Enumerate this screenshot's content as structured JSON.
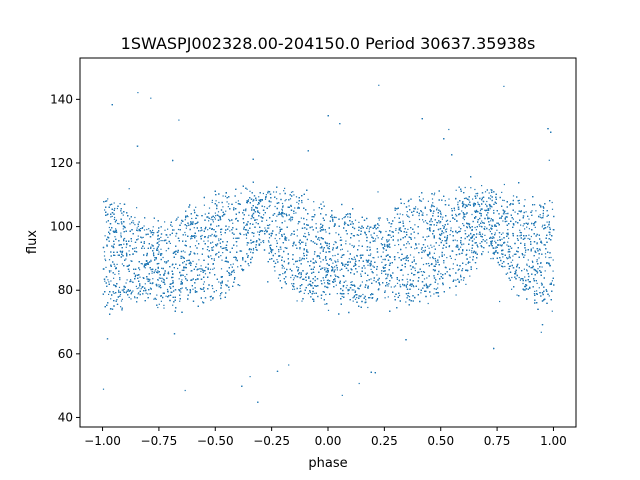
{
  "chart_data": {
    "type": "scatter",
    "title": "1SWASPJ002328.00-204150.0 Period 30637.35938s",
    "xlabel": "phase",
    "ylabel": "flux",
    "xlim": [
      -1.1,
      1.1
    ],
    "ylim": [
      37,
      153
    ],
    "xticks": [
      -1.0,
      -0.75,
      -0.5,
      -0.25,
      0.0,
      0.25,
      0.5,
      0.75,
      1.0
    ],
    "xtick_labels": [
      "−1.00",
      "−0.75",
      "−0.50",
      "−0.25",
      "0.00",
      "0.25",
      "0.50",
      "0.75",
      "1.00"
    ],
    "yticks": [
      40,
      60,
      80,
      100,
      120,
      140
    ],
    "ytick_labels": [
      "40",
      "60",
      "80",
      "100",
      "120",
      "140"
    ],
    "grid": false,
    "marker_color": "#1f77b4",
    "series": [
      {
        "phase_range": [
          -1.0,
          1.0
        ],
        "upper_envelope": {
          "x": [
            -1.0,
            -0.9,
            -0.8,
            -0.7,
            -0.6,
            -0.5,
            -0.4,
            -0.3,
            -0.2,
            -0.1,
            0.0,
            0.1,
            0.2,
            0.3,
            0.4,
            0.5,
            0.6,
            0.7,
            0.8,
            0.9,
            1.0
          ],
          "y": [
            108,
            106,
            101,
            101,
            107,
            109,
            110,
            111,
            111,
            109,
            106,
            104,
            101,
            105,
            109,
            110,
            111,
            111,
            110,
            108,
            107
          ]
        },
        "lower_envelope": {
          "x": [
            -1.0,
            -0.9,
            -0.8,
            -0.7,
            -0.6,
            -0.5,
            -0.4,
            -0.3,
            -0.2,
            -0.1,
            0.0,
            0.1,
            0.2,
            0.3,
            0.4,
            0.5,
            0.6,
            0.7,
            0.8,
            0.9,
            1.0
          ],
          "y": [
            74,
            76,
            77,
            76,
            75,
            77,
            82,
            95,
            83,
            78,
            76,
            76,
            77,
            76,
            76,
            78,
            83,
            95,
            83,
            77,
            75
          ]
        },
        "outlier_range": [
          42,
          150
        ]
      }
    ]
  }
}
